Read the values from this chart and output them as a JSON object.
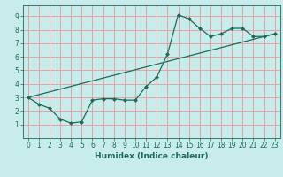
{
  "xlabel": "Humidex (Indice chaleur)",
  "ylabel": "",
  "bg_color": "#c8ecec",
  "plot_bg_color": "#c8ecec",
  "grid_color": "#e8a0a0",
  "line_color": "#1a6b5a",
  "xlim": [
    -0.5,
    23.5
  ],
  "ylim": [
    0.0,
    9.8
  ],
  "xticks": [
    0,
    1,
    2,
    3,
    4,
    5,
    6,
    7,
    8,
    9,
    10,
    11,
    12,
    13,
    14,
    15,
    16,
    17,
    18,
    19,
    20,
    21,
    22,
    23
  ],
  "yticks": [
    1,
    2,
    3,
    4,
    5,
    6,
    7,
    8,
    9
  ],
  "series1_x": [
    0,
    1,
    2,
    3,
    4,
    5,
    6,
    7,
    8,
    9,
    10,
    11,
    12,
    13,
    14,
    15,
    16,
    17,
    18,
    19,
    20,
    21,
    22,
    23
  ],
  "series1_y": [
    3.0,
    2.5,
    2.2,
    1.4,
    1.1,
    1.2,
    2.8,
    2.9,
    2.9,
    2.8,
    2.8,
    3.8,
    4.5,
    6.2,
    9.1,
    8.8,
    8.1,
    7.5,
    7.7,
    8.1,
    8.1,
    7.5,
    7.5,
    7.7
  ],
  "series2_x": [
    0,
    23
  ],
  "series2_y": [
    3.0,
    7.7
  ],
  "marker_size": 2.5,
  "tick_fontsize": 5.5,
  "xlabel_fontsize": 6.5,
  "linewidth": 0.9
}
